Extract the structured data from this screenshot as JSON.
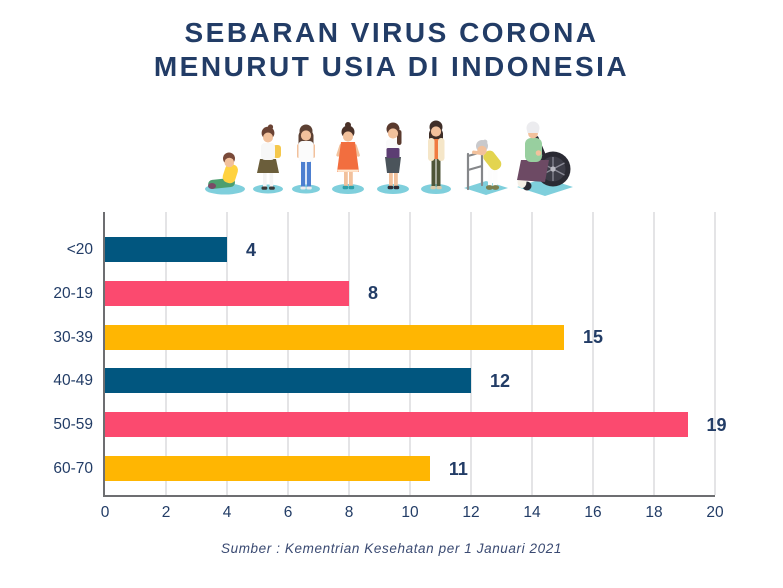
{
  "title": {
    "line1": "SEBARAN VIRUS CORONA",
    "line2": "MENURUT USIA DI INDONESIA"
  },
  "illustration": {
    "description": "row of eight people from youngest to oldest",
    "people": [
      "toddler-sitting",
      "schoolgirl-with-backpack",
      "teenage-girl",
      "young-woman-orange-dress",
      "adult-woman-with-folder",
      "middle-aged-woman-jacket",
      "elderly-woman-with-walker",
      "elderly-woman-in-wheelchair"
    ]
  },
  "chart_data": {
    "type": "bar",
    "orientation": "horizontal",
    "title": "SEBARAN VIRUS CORONA MENURUT USIA DI INDONESIA",
    "categories": [
      "<20",
      "20-19",
      "30-39",
      "40-49",
      "50-59",
      "60-70"
    ],
    "values": [
      4,
      8,
      15,
      12,
      19,
      11
    ],
    "bar_lengths_visual": [
      4,
      8,
      15.05,
      12,
      19.1,
      10.65
    ],
    "bar_colors": [
      "#01567F",
      "#FB4A6F",
      "#FFB602",
      "#01567F",
      "#FB4A6F",
      "#FFB602"
    ],
    "xlabel": "",
    "ylabel": "",
    "xlim": [
      0,
      20
    ],
    "xticks": [
      0,
      2,
      4,
      6,
      8,
      10,
      12,
      14,
      16,
      18,
      20
    ],
    "grid": true,
    "value_labels": true,
    "legend": "none"
  },
  "footer": {
    "source": "Sumber : Kementrian Kesehatan per 1 Januari 2021"
  },
  "colors": {
    "title_text": "#223C66",
    "label_text": "#223C66",
    "bar_navy": "#01567F",
    "bar_pink": "#FB4A6F",
    "bar_orange": "#FFB602",
    "axis": "#6D6E71",
    "gridline": "#E4E4E6",
    "shadow_teal": "#7FCFDC"
  }
}
